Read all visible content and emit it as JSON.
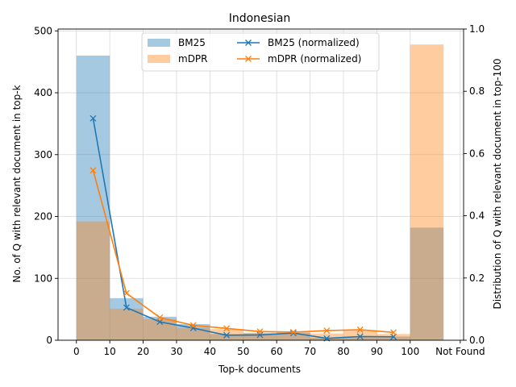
{
  "chart_data": {
    "type": "bar",
    "title": "Indonesian",
    "xlabel": "Top-k documents",
    "ylabel": "No. of Q with relevant document in top-k",
    "y2label": "Distribution of Q with relevant document in top-100",
    "x_ticks": [
      "0",
      "10",
      "20",
      "30",
      "40",
      "50",
      "60",
      "70",
      "80",
      "90",
      "100",
      "Not Found"
    ],
    "y_ticks": [
      "0",
      "100",
      "200",
      "300",
      "400",
      "500"
    ],
    "y2_ticks": [
      "0.0",
      "0.2",
      "0.4",
      "0.6",
      "0.8",
      "1.0"
    ],
    "ylim": [
      0,
      503
    ],
    "y2lim": [
      0,
      1.0
    ],
    "grid": true,
    "legend_position": "top-center",
    "bins": [
      [
        0,
        10
      ],
      [
        10,
        20
      ],
      [
        20,
        30
      ],
      [
        30,
        40
      ],
      [
        40,
        50
      ],
      [
        50,
        60
      ],
      [
        60,
        70
      ],
      [
        70,
        80
      ],
      [
        80,
        90
      ],
      [
        90,
        100
      ],
      [
        100,
        110
      ]
    ],
    "series": [
      {
        "name": "BM25",
        "kind": "bar",
        "color": "#1f77b4",
        "values": [
          460,
          68,
          38,
          26,
          10,
          11,
          12,
          4,
          6,
          6,
          182
        ]
      },
      {
        "name": "mDPR",
        "kind": "bar",
        "color": "#ff7f0e",
        "values": [
          192,
          51,
          34,
          20,
          18,
          12,
          13,
          11,
          16,
          10,
          478
        ]
      },
      {
        "name": "BM25 (normalized)",
        "kind": "line",
        "axis": "right",
        "color": "#1f77b4",
        "x": [
          5,
          15,
          25,
          35,
          45,
          55,
          65,
          75,
          85,
          95
        ],
        "values": [
          0.713,
          0.105,
          0.059,
          0.039,
          0.016,
          0.017,
          0.023,
          0.006,
          0.012,
          0.011
        ]
      },
      {
        "name": "mDPR (normalized)",
        "kind": "line",
        "axis": "right",
        "color": "#ff7f0e",
        "x": [
          5,
          15,
          25,
          35,
          45,
          55,
          65,
          75,
          85,
          95
        ],
        "values": [
          0.546,
          0.151,
          0.073,
          0.048,
          0.038,
          0.028,
          0.026,
          0.031,
          0.034,
          0.025
        ]
      }
    ]
  }
}
